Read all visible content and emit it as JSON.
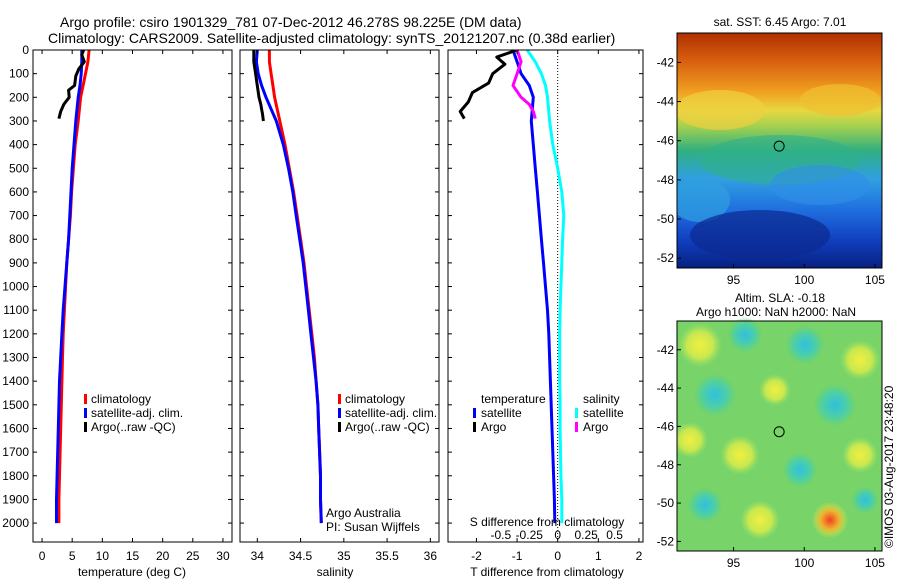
{
  "header": {
    "line1": "Argo profile: csiro 1901329_781 07-Dec-2012 46.278S 98.225E (DM data)",
    "line2": "Climatology: CARS2009. Satellite-adjusted climatology: synTS_20121207.nc (0.38d earlier)"
  },
  "colors": {
    "climatology": "#ff0000",
    "satellite": "#0000ff",
    "argo": "#000000",
    "sal_satellite": "#00ffff",
    "sal_argo": "#ff00ff"
  },
  "chart_data": [
    {
      "type": "line",
      "panel": "temperature",
      "xlabel": "temperature (deg C)",
      "ylabel": "",
      "xlim": [
        -1.5,
        31.5
      ],
      "ylim": [
        2080,
        0
      ],
      "xticks": [
        "0",
        "5",
        "10",
        "15",
        "20",
        "25",
        "30"
      ],
      "xtick_values": [
        0,
        5,
        10,
        15,
        20,
        25,
        30
      ],
      "yticks": [
        "0",
        "100",
        "200",
        "300",
        "400",
        "500",
        "600",
        "700",
        "800",
        "900",
        "1000",
        "1100",
        "1200",
        "1300",
        "1400",
        "1500",
        "1600",
        "1700",
        "1800",
        "1900",
        "2000"
      ],
      "ytick_values": [
        0,
        100,
        200,
        300,
        400,
        500,
        600,
        700,
        800,
        900,
        1000,
        1100,
        1200,
        1300,
        1400,
        1500,
        1600,
        1700,
        1800,
        1900,
        2000
      ],
      "legend": [
        "climatology",
        "satellite-adj. clim.",
        "Argo(..raw -QC)"
      ],
      "series": [
        {
          "name": "climatology",
          "color_key": "climatology",
          "x": [
            7.8,
            7.6,
            7.2,
            6.8,
            6.4,
            6.0,
            5.5,
            5.2,
            4.9,
            4.7,
            4.4,
            4.1,
            3.9,
            3.7,
            3.5,
            3.4,
            3.3,
            3.2,
            3.1,
            3.0,
            2.9,
            2.8,
            2.8
          ],
          "y": [
            0,
            50,
            100,
            150,
            200,
            300,
            400,
            500,
            600,
            700,
            800,
            900,
            1000,
            1100,
            1200,
            1300,
            1400,
            1500,
            1600,
            1700,
            1800,
            1900,
            2000
          ]
        },
        {
          "name": "satellite-adj. clim.",
          "color_key": "satellite",
          "x": [
            6.6,
            6.6,
            6.5,
            6.3,
            6.0,
            5.6,
            5.3,
            5.0,
            4.8,
            4.6,
            4.4,
            4.1,
            3.8,
            3.5,
            3.3,
            3.1,
            2.9,
            2.8,
            2.7,
            2.6,
            2.5,
            2.4,
            2.4
          ],
          "y": [
            0,
            50,
            100,
            150,
            200,
            300,
            400,
            500,
            600,
            700,
            800,
            900,
            1000,
            1100,
            1200,
            1300,
            1400,
            1500,
            1600,
            1700,
            1800,
            1900,
            2000
          ]
        },
        {
          "name": "Argo(..raw -QC)",
          "color_key": "argo",
          "x": [
            6.9,
            6.6,
            7.0,
            6.1,
            5.6,
            5.4,
            4.4,
            4.5,
            3.6,
            3.1,
            2.8
          ],
          "y": [
            0,
            20,
            50,
            80,
            110,
            150,
            170,
            200,
            230,
            260,
            290
          ]
        }
      ]
    },
    {
      "type": "line",
      "panel": "salinity",
      "xlabel": "salinity",
      "ylabel": "",
      "xlim": [
        33.8,
        36.1
      ],
      "ylim": [
        2080,
        0
      ],
      "xticks": [
        "34",
        "34.5",
        "35",
        "35.5",
        "36"
      ],
      "xtick_values": [
        34,
        34.5,
        35,
        35.5,
        36
      ],
      "legend": [
        "climatology",
        "satellite-adj. clim.",
        "Argo(..raw -QC)"
      ],
      "annotations": [
        "Argo Australia",
        "PI: Susan Wijffels"
      ],
      "series": [
        {
          "name": "climatology",
          "color_key": "climatology",
          "x": [
            34.14,
            34.14,
            34.16,
            34.18,
            34.2,
            34.26,
            34.32,
            34.37,
            34.42,
            34.46,
            34.5,
            34.54,
            34.57,
            34.6,
            34.63,
            34.66,
            34.68,
            34.7,
            34.71,
            34.72,
            34.73,
            34.73,
            34.74
          ],
          "y": [
            0,
            50,
            100,
            150,
            200,
            300,
            400,
            500,
            600,
            700,
            800,
            900,
            1000,
            1100,
            1200,
            1300,
            1400,
            1500,
            1600,
            1700,
            1800,
            1900,
            2000
          ]
        },
        {
          "name": "satellite-adj. clim.",
          "color_key": "satellite",
          "x": [
            34.0,
            33.99,
            34.01,
            34.05,
            34.1,
            34.22,
            34.3,
            34.36,
            34.41,
            34.45,
            34.49,
            34.53,
            34.56,
            34.59,
            34.62,
            34.65,
            34.68,
            34.7,
            34.71,
            34.72,
            34.73,
            34.73,
            34.74
          ],
          "y": [
            0,
            50,
            100,
            150,
            200,
            300,
            400,
            500,
            600,
            700,
            800,
            900,
            1000,
            1100,
            1200,
            1300,
            1400,
            1500,
            1600,
            1700,
            1800,
            1900,
            2000
          ]
        },
        {
          "name": "Argo(..raw -QC)",
          "color_key": "argo",
          "x": [
            33.96,
            33.96,
            33.98,
            34.0,
            34.02,
            34.04,
            34.05,
            34.06,
            34.07
          ],
          "y": [
            0,
            50,
            100,
            150,
            200,
            230,
            250,
            270,
            300
          ]
        }
      ]
    },
    {
      "type": "line",
      "panel": "differences",
      "xlabel": "T difference from climatology",
      "xlabel2": "S difference from climatology",
      "xlim": [
        -2.7,
        2.1
      ],
      "ylim": [
        2080,
        0
      ],
      "xticks": [
        "-2",
        "-1",
        "0",
        "1",
        "2"
      ],
      "xtick_values": [
        -2,
        -1,
        0,
        1,
        2
      ],
      "sticks": [
        "-0.5",
        "-0.25",
        "0",
        "0.25",
        "0.5"
      ],
      "stick_values": [
        -1.4,
        -0.7,
        0.0,
        0.7,
        1.4
      ],
      "legend_headers": [
        "temperature",
        "salinity"
      ],
      "legend": [
        "satellite",
        "Argo",
        "satellite",
        "Argo"
      ],
      "series": [
        {
          "name": "satellite",
          "color_key": "satellite",
          "x": [
            -1.1,
            -1.0,
            -0.9,
            -0.7,
            -0.6,
            -0.65,
            -0.6,
            -0.55,
            -0.5,
            -0.45,
            -0.4,
            -0.35,
            -0.3,
            -0.25,
            -0.22,
            -0.2,
            -0.18,
            -0.16,
            -0.14,
            -0.12,
            -0.1,
            -0.08,
            -0.07
          ],
          "y": [
            0,
            50,
            100,
            150,
            200,
            300,
            400,
            500,
            600,
            700,
            800,
            900,
            1000,
            1100,
            1200,
            1300,
            1400,
            1500,
            1600,
            1700,
            1800,
            1900,
            2000
          ]
        },
        {
          "name": "Argo",
          "color_key": "argo",
          "x": [
            -1.0,
            -1.5,
            -1.3,
            -1.6,
            -1.7,
            -2.1,
            -2.2,
            -2.4,
            -2.3
          ],
          "y": [
            0,
            30,
            60,
            100,
            140,
            180,
            220,
            260,
            290
          ]
        },
        {
          "name": "satellite",
          "color_key": "sal_satellite",
          "x": [
            -0.75,
            -0.55,
            -0.4,
            -0.3,
            -0.25,
            -0.2,
            -0.12,
            0.0,
            0.1,
            0.15,
            0.12,
            0.1,
            0.08,
            0.06,
            0.05,
            0.05,
            0.05,
            0.06,
            0.06,
            0.07,
            0.08,
            0.1,
            0.1
          ],
          "y": [
            0,
            50,
            100,
            150,
            200,
            300,
            400,
            500,
            600,
            700,
            800,
            900,
            1000,
            1100,
            1200,
            1300,
            1400,
            1500,
            1600,
            1700,
            1800,
            1900,
            2000
          ]
        },
        {
          "name": "Argo",
          "color_key": "sal_argo",
          "x": [
            -1.0,
            -0.9,
            -1.0,
            -1.1,
            -0.9,
            -0.7,
            -0.6,
            -0.55
          ],
          "y": [
            0,
            50,
            100,
            150,
            200,
            230,
            260,
            290
          ]
        }
      ]
    },
    {
      "type": "heatmap",
      "panel": "sst-map",
      "title": "sat. SST: 6.45 Argo: 7.01",
      "xlim": [
        91,
        105.5
      ],
      "ylim": [
        -52.5,
        -40.5
      ],
      "xticks": [
        "95",
        "100",
        "105"
      ],
      "xtick_values": [
        95,
        100,
        105
      ],
      "yticks": [
        "-42",
        "-44",
        "-46",
        "-48",
        "-50",
        "-52"
      ],
      "ytick_values": [
        -42,
        -44,
        -46,
        -48,
        -50,
        -52
      ],
      "marker": {
        "lon": 98.225,
        "lat": -46.278
      }
    },
    {
      "type": "heatmap",
      "panel": "sla-map",
      "title": "Altim. SLA: -0.18",
      "subtitle": "Argo h1000: NaN h2000: NaN",
      "xlim": [
        91,
        105.5
      ],
      "ylim": [
        -52.5,
        -40.5
      ],
      "xticks": [
        "95",
        "100",
        "105"
      ],
      "xtick_values": [
        95,
        100,
        105
      ],
      "yticks": [
        "-42",
        "-44",
        "-46",
        "-48",
        "-50",
        "-52"
      ],
      "ytick_values": [
        -42,
        -44,
        -46,
        -48,
        -50,
        -52
      ],
      "marker": {
        "lon": 98.225,
        "lat": -46.278
      },
      "credit": "©IMOS 03-Aug-2017 23:48:20"
    }
  ]
}
